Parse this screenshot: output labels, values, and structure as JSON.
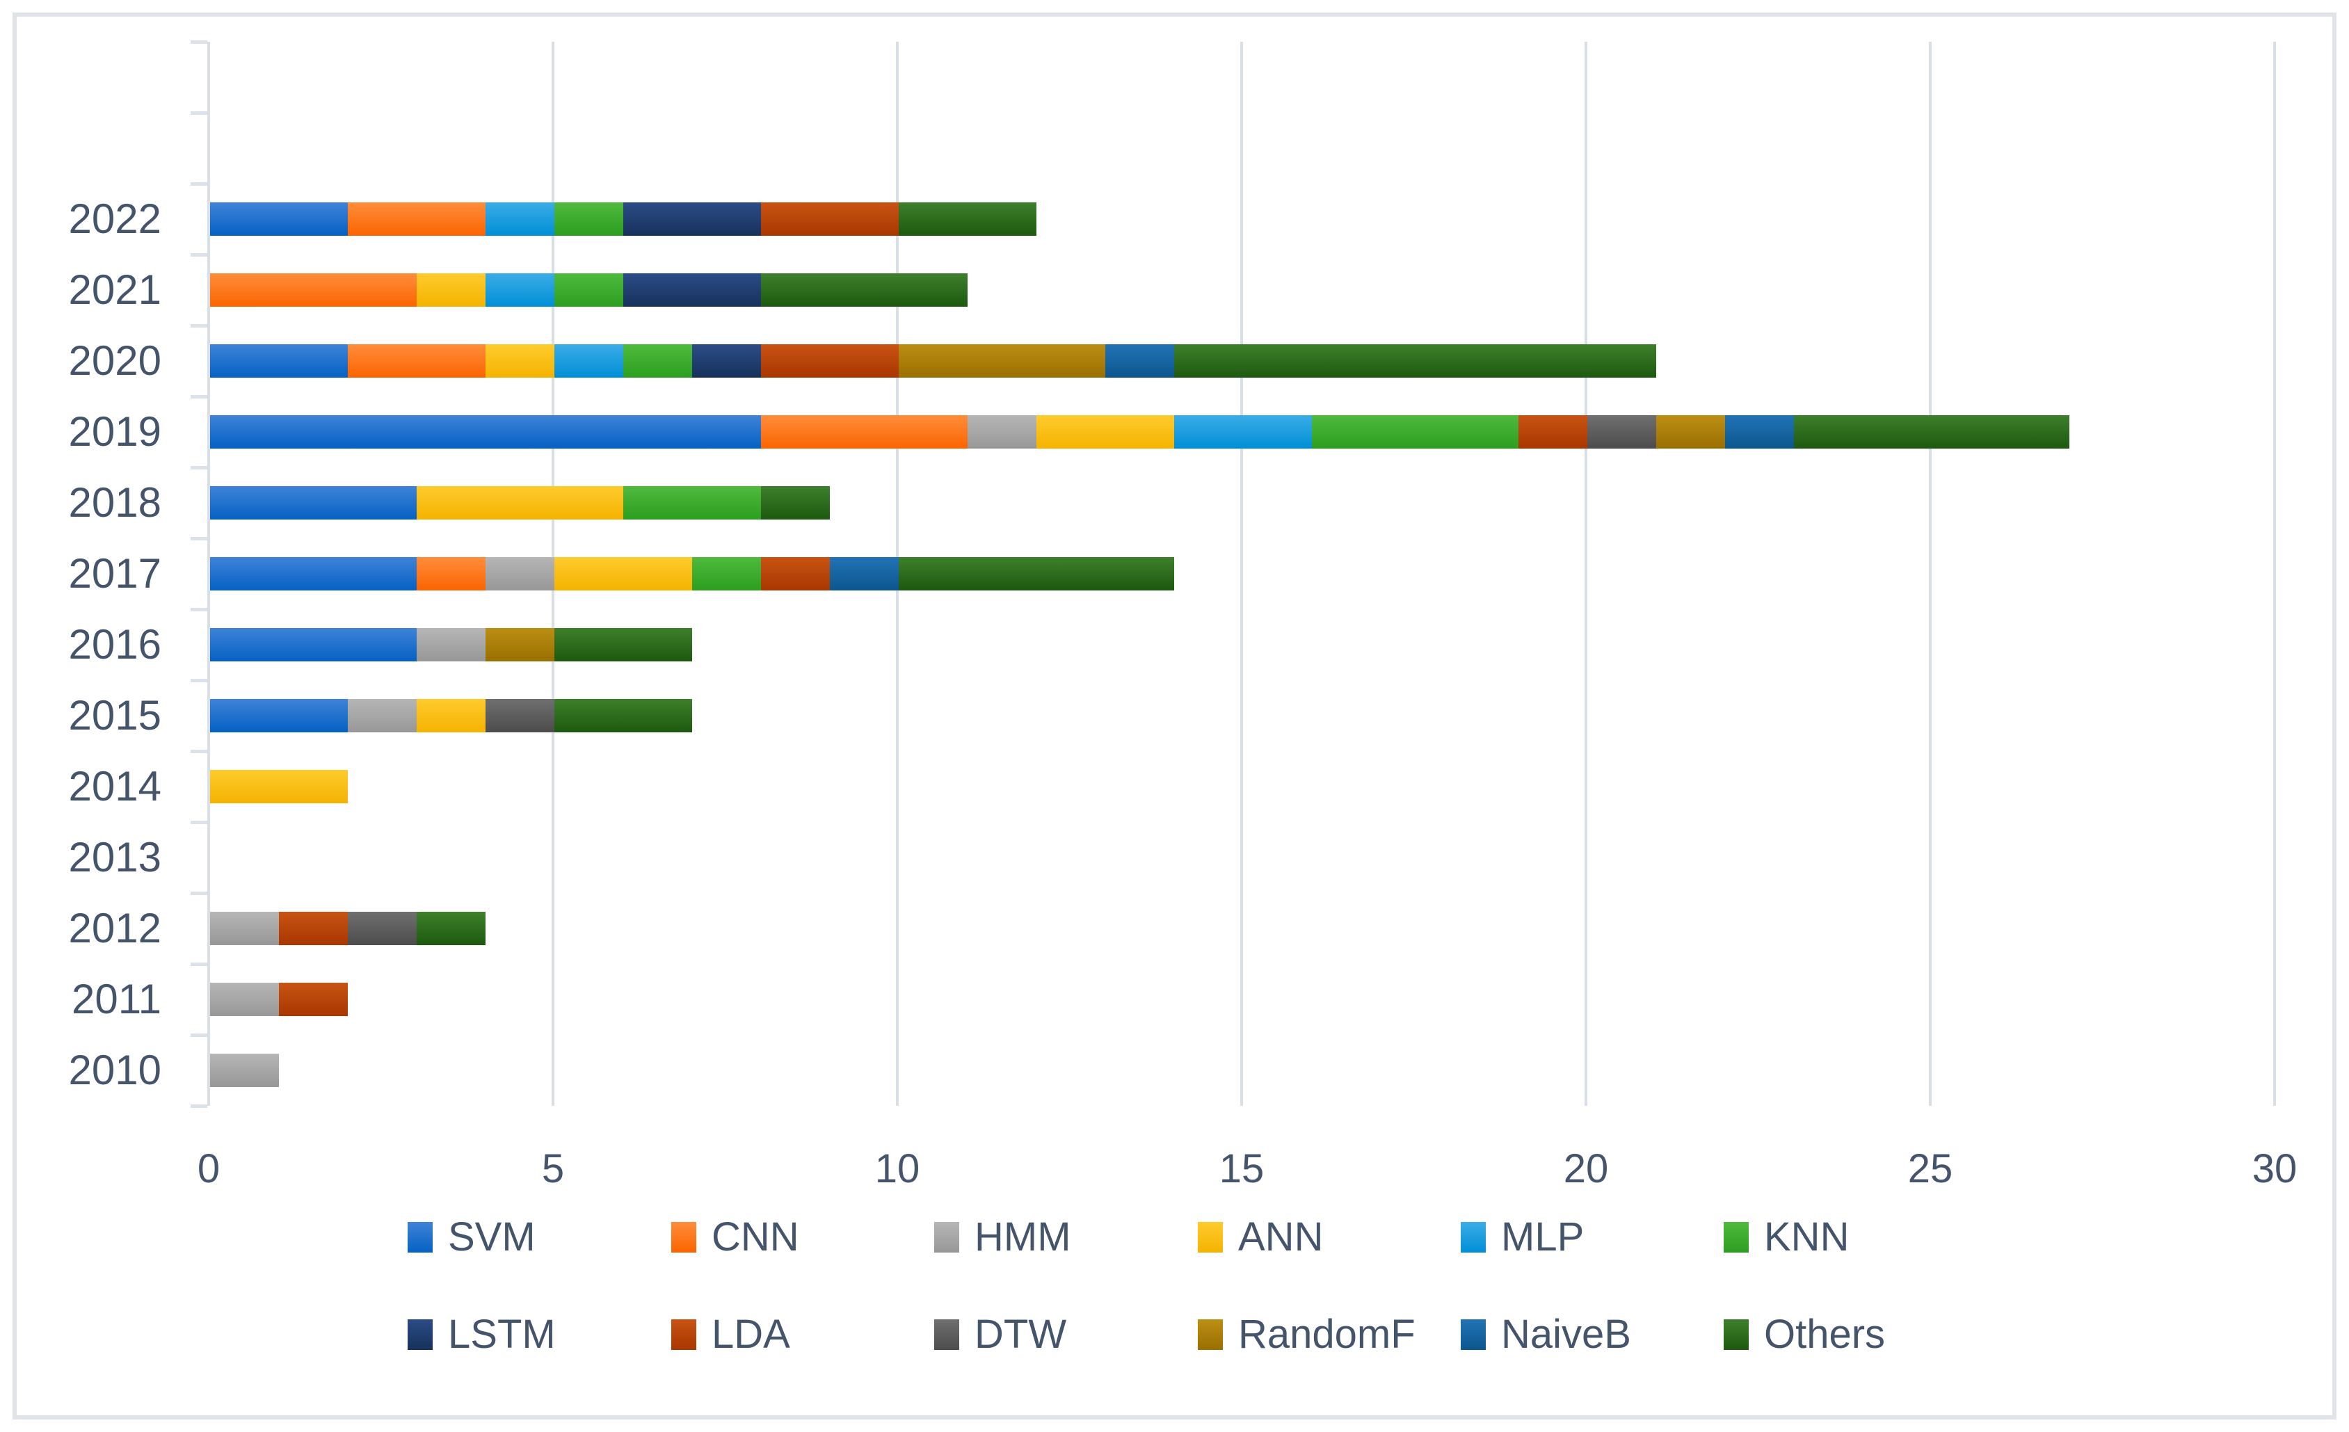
{
  "chart_data": {
    "type": "bar",
    "orientation": "horizontal",
    "stacked": true,
    "title": "",
    "xlabel": "",
    "ylabel": "",
    "xlim": [
      0,
      30
    ],
    "x_ticks": [
      0,
      5,
      10,
      15,
      20,
      25,
      30
    ],
    "x_tick_labels": [
      "0",
      "5",
      "10",
      "15",
      "20",
      "25",
      "30"
    ],
    "grid": true,
    "legend_position": "bottom-two-rows",
    "categories": [
      "2022",
      "2021",
      "2020",
      "2019",
      "2018",
      "2017",
      "2016",
      "2015",
      "2014",
      "2013",
      "2012",
      "2011",
      "2010"
    ],
    "totals": [
      12,
      11,
      21,
      27,
      9,
      14,
      7,
      7,
      2,
      0,
      4,
      2,
      1
    ],
    "series": [
      {
        "name": "SVM",
        "color": "#1F71CD",
        "color_top": "#3F83D8",
        "color_bottom": "#0561C3",
        "values": [
          2,
          0,
          2,
          8,
          3,
          3,
          3,
          2,
          0,
          0,
          0,
          0,
          0
        ]
      },
      {
        "name": "CNN",
        "color": "#FD7A1C",
        "color_top": "#FF8D3B",
        "color_bottom": "#FB6400",
        "values": [
          2,
          3,
          2,
          3,
          0,
          1,
          0,
          0,
          0,
          0,
          0,
          0,
          0
        ]
      },
      {
        "name": "HMM",
        "color": "#A7A7A7",
        "color_top": "#B6B6B6",
        "color_bottom": "#979797",
        "values": [
          0,
          0,
          0,
          1,
          0,
          1,
          1,
          1,
          0,
          0,
          1,
          1,
          1
        ]
      },
      {
        "name": "ANN",
        "color": "#FFC000",
        "color_top": "#FFCB2D",
        "color_bottom": "#F4B300",
        "values": [
          0,
          1,
          1,
          2,
          3,
          2,
          0,
          1,
          2,
          0,
          0,
          0,
          0
        ]
      },
      {
        "name": "MLP",
        "color": "#1D9EDE",
        "color_top": "#3BACE6",
        "color_bottom": "#008FD6",
        "values": [
          1,
          1,
          1,
          2,
          0,
          0,
          0,
          0,
          0,
          0,
          0,
          0,
          0
        ]
      },
      {
        "name": "KNN",
        "color": "#3EAD2F",
        "color_top": "#50BA3D",
        "color_bottom": "#2B9E20",
        "values": [
          1,
          1,
          1,
          3,
          2,
          1,
          0,
          0,
          0,
          0,
          0,
          0,
          0
        ]
      },
      {
        "name": "LSTM",
        "color": "#21406F",
        "color_top": "#2B4C87",
        "color_bottom": "#16315B",
        "values": [
          2,
          2,
          1,
          0,
          0,
          0,
          0,
          0,
          0,
          0,
          0,
          0,
          0
        ]
      },
      {
        "name": "LDA",
        "color": "#B94509",
        "color_top": "#C85313",
        "color_bottom": "#A83700",
        "values": [
          2,
          0,
          2,
          1,
          0,
          1,
          0,
          0,
          0,
          0,
          1,
          1,
          0
        ]
      },
      {
        "name": "DTW",
        "color": "#5E5E5E",
        "color_top": "#6F6F6F",
        "color_bottom": "#4C4C4C",
        "values": [
          0,
          0,
          0,
          1,
          0,
          0,
          0,
          1,
          0,
          0,
          1,
          0,
          0
        ]
      },
      {
        "name": "RandomF",
        "color": "#AB7E09",
        "color_top": "#BC8E14",
        "color_bottom": "#996F00",
        "values": [
          0,
          0,
          3,
          1,
          0,
          0,
          1,
          0,
          0,
          0,
          0,
          0,
          0
        ]
      },
      {
        "name": "NaiveB",
        "color": "#1765A2",
        "color_top": "#2273B5",
        "color_bottom": "#0C568E",
        "values": [
          0,
          0,
          1,
          1,
          0,
          1,
          0,
          0,
          0,
          0,
          0,
          0,
          0
        ]
      },
      {
        "name": "Others",
        "color": "#2D6C1C",
        "color_top": "#3D802B",
        "color_bottom": "#1D590F",
        "values": [
          2,
          3,
          7,
          4,
          1,
          4,
          2,
          2,
          0,
          0,
          1,
          0,
          0
        ]
      }
    ]
  },
  "colors": {
    "text": "#44546A",
    "gridline": "#D9DFE6",
    "axis_line": "#DCE2E9",
    "frame_border": "#DFE4EA",
    "background": "#FFFFFF"
  }
}
